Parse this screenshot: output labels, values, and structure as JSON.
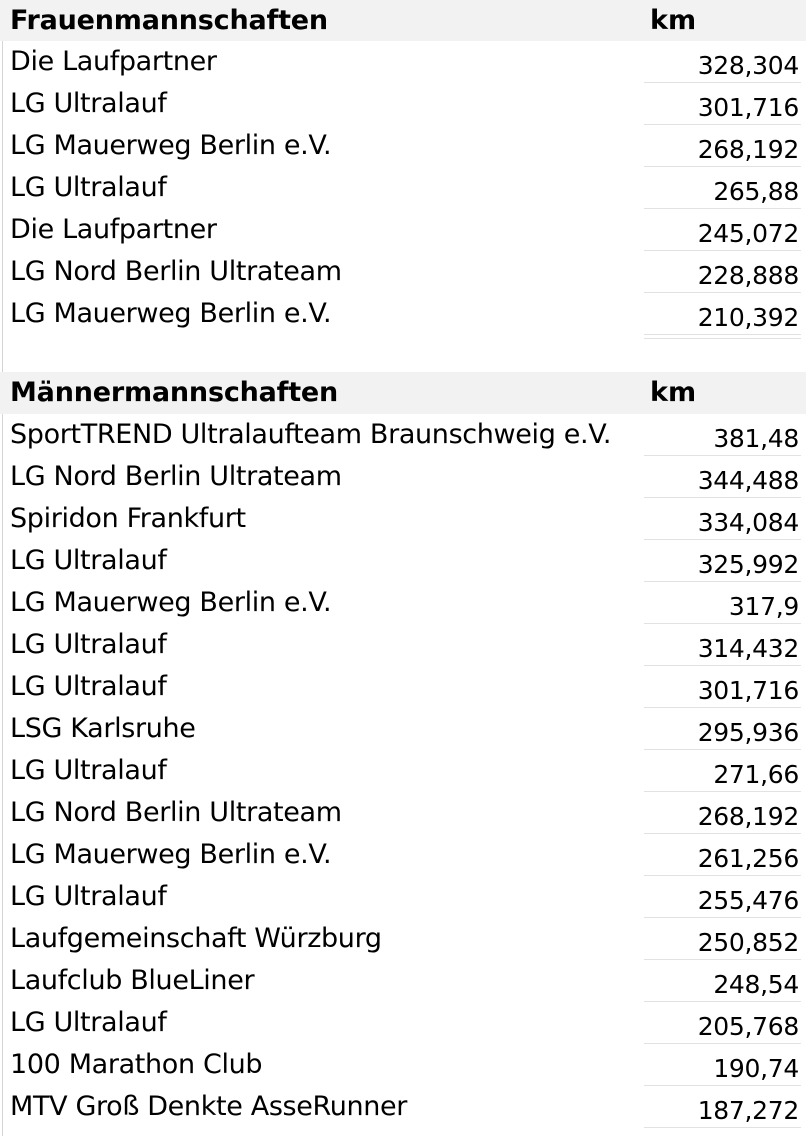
{
  "women": {
    "title": "Frauenmannschaften",
    "unit_header": "km",
    "rows": [
      {
        "team": "Die Laufpartner",
        "km": "328,304"
      },
      {
        "team": "LG Ultralauf",
        "km": "301,716"
      },
      {
        "team": "LG Mauerweg Berlin e.V.",
        "km": "268,192"
      },
      {
        "team": "LG Ultralauf",
        "km": "265,88"
      },
      {
        "team": "Die Laufpartner",
        "km": "245,072"
      },
      {
        "team": "LG Nord Berlin Ultrateam",
        "km": "228,888"
      },
      {
        "team": "LG Mauerweg Berlin e.V.",
        "km": "210,392"
      }
    ]
  },
  "men": {
    "title": "Männermannschaften",
    "unit_header": "km",
    "rows": [
      {
        "team": "SportTREND Ultralaufteam Braunschweig e.V.",
        "km": "381,48"
      },
      {
        "team": "LG Nord Berlin Ultrateam",
        "km": "344,488"
      },
      {
        "team": "Spiridon Frankfurt",
        "km": "334,084"
      },
      {
        "team": "LG Ultralauf",
        "km": "325,992"
      },
      {
        "team": "LG Mauerweg Berlin e.V.",
        "km": "317,9"
      },
      {
        "team": "LG Ultralauf",
        "km": "314,432"
      },
      {
        "team": "LG Ultralauf",
        "km": "301,716"
      },
      {
        "team": "LSG Karlsruhe",
        "km": "295,936"
      },
      {
        "team": "LG Ultralauf",
        "km": "271,66"
      },
      {
        "team": "LG Nord Berlin Ultrateam",
        "km": "268,192"
      },
      {
        "team": "LG Mauerweg Berlin e.V.",
        "km": "261,256"
      },
      {
        "team": "LG Ultralauf",
        "km": "255,476"
      },
      {
        "team": "Laufgemeinschaft Würzburg",
        "km": "250,852"
      },
      {
        "team": "Laufclub BlueLiner",
        "km": "248,54"
      },
      {
        "team": "LG Ultralauf",
        "km": "205,768"
      },
      {
        "team": "100 Marathon Club",
        "km": "190,74"
      },
      {
        "team": "MTV Groß Denkte AsseRunner",
        "km": "187,272"
      }
    ]
  }
}
